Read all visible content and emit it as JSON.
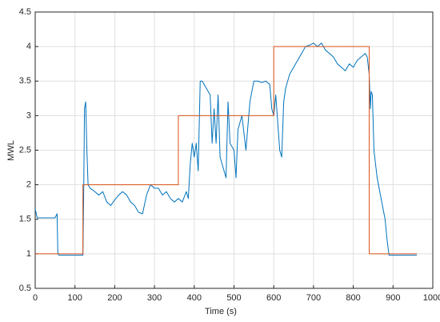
{
  "chart_data": {
    "type": "line",
    "xlabel": "Time (s)",
    "ylabel": "MWL",
    "xlim": [
      0,
      1000
    ],
    "xticks": [
      0,
      100,
      200,
      300,
      400,
      500,
      600,
      700,
      800,
      900,
      1000
    ],
    "ylim": [
      0.5,
      4.5
    ],
    "yticks": [
      0.5,
      1,
      1.5,
      2,
      2.5,
      3,
      3.5,
      4,
      4.5
    ],
    "grid": true,
    "series": [
      {
        "color": "#0072bd",
        "x": [
          0,
          5,
          50,
          55,
          57,
          60,
          120,
          122,
          124,
          127,
          130,
          133,
          138,
          150,
          160,
          170,
          180,
          190,
          200,
          210,
          220,
          230,
          240,
          250,
          260,
          270,
          280,
          290,
          300,
          310,
          320,
          330,
          340,
          350,
          360,
          370,
          380,
          385,
          390,
          395,
          400,
          405,
          410,
          415,
          420,
          430,
          440,
          445,
          450,
          455,
          460,
          465,
          470,
          480,
          485,
          490,
          500,
          505,
          510,
          520,
          530,
          540,
          550,
          560,
          570,
          580,
          590,
          595,
          600,
          605,
          610,
          615,
          620,
          625,
          630,
          640,
          650,
          660,
          670,
          680,
          690,
          700,
          710,
          720,
          730,
          740,
          750,
          760,
          770,
          780,
          790,
          800,
          810,
          820,
          830,
          835,
          840,
          843,
          845,
          848,
          852,
          860,
          870,
          880,
          885,
          890,
          960
        ],
        "values": [
          1.65,
          1.52,
          1.52,
          1.58,
          1.0,
          0.98,
          0.98,
          1.9,
          3.1,
          3.2,
          2.5,
          2.0,
          1.95,
          1.9,
          1.85,
          1.9,
          1.75,
          1.7,
          1.78,
          1.85,
          1.9,
          1.85,
          1.75,
          1.7,
          1.6,
          1.58,
          1.85,
          2.0,
          1.95,
          1.95,
          1.85,
          1.9,
          1.8,
          1.75,
          1.8,
          1.75,
          1.9,
          1.8,
          2.3,
          2.6,
          2.4,
          2.6,
          2.2,
          3.5,
          3.5,
          3.4,
          3.3,
          2.6,
          3.1,
          2.6,
          3.3,
          2.4,
          2.3,
          2.1,
          3.2,
          2.6,
          2.5,
          2.1,
          2.8,
          3.0,
          2.5,
          3.2,
          3.5,
          3.5,
          3.48,
          3.5,
          3.45,
          3.1,
          3.0,
          3.3,
          2.9,
          2.5,
          2.4,
          3.2,
          3.4,
          3.6,
          3.7,
          3.8,
          3.9,
          4.0,
          4.02,
          4.05,
          4.0,
          4.05,
          3.95,
          3.9,
          3.85,
          3.75,
          3.7,
          3.65,
          3.75,
          3.7,
          3.8,
          3.85,
          3.9,
          3.85,
          3.6,
          3.1,
          3.35,
          3.3,
          2.5,
          2.1,
          1.8,
          1.5,
          1.2,
          0.98,
          0.98
        ]
      },
      {
        "color": "#d95319",
        "x": [
          0,
          120,
          120,
          360,
          360,
          600,
          600,
          840,
          840,
          960
        ],
        "values": [
          1,
          1,
          2,
          2,
          3,
          3,
          4,
          4,
          1,
          1
        ]
      }
    ]
  }
}
